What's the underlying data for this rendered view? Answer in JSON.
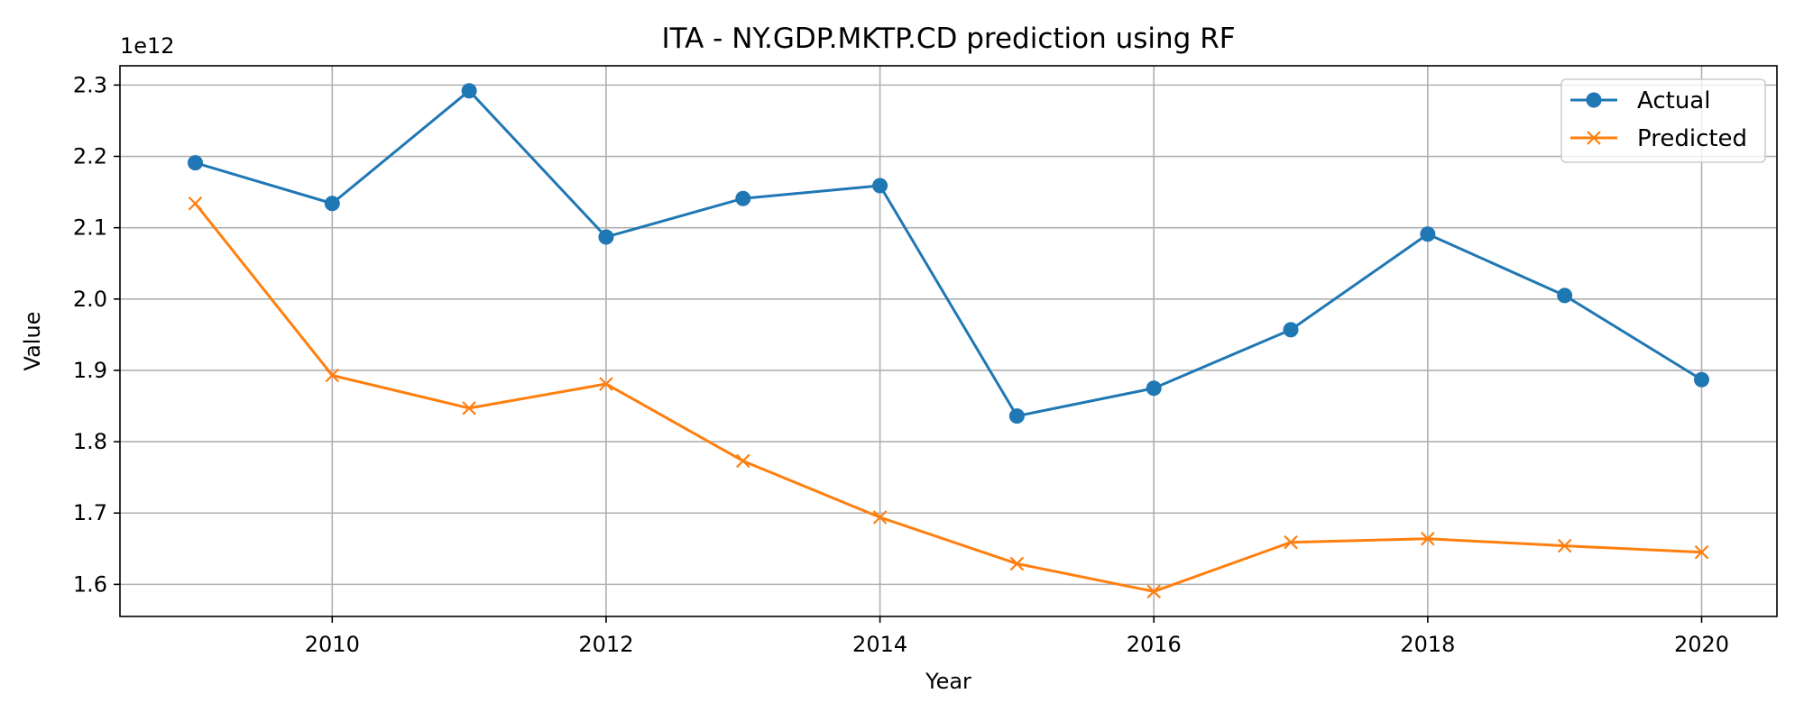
{
  "chart_data": {
    "type": "line",
    "title": "ITA - NY.GDP.MKTP.CD prediction using RF",
    "xlabel": "Year",
    "ylabel": "Value",
    "y_offset_text": "1e12",
    "x": [
      2009,
      2010,
      2011,
      2012,
      2013,
      2014,
      2015,
      2016,
      2017,
      2018,
      2019,
      2020
    ],
    "x_ticks": [
      2010,
      2012,
      2014,
      2016,
      2018,
      2020
    ],
    "y_ticks": [
      1.6,
      1.7,
      1.8,
      1.9,
      2.0,
      2.1,
      2.2,
      2.3
    ],
    "xlim": [
      2008.45,
      2020.55
    ],
    "ylim": [
      1.555,
      2.327
    ],
    "grid": true,
    "legend_position": "upper right",
    "series": [
      {
        "name": "Actual",
        "color": "#1f77b4",
        "marker": "circle",
        "values": [
          2.191,
          2.134,
          2.292,
          2.087,
          2.141,
          2.159,
          1.836,
          1.875,
          1.957,
          2.091,
          2.005,
          1.887
        ]
      },
      {
        "name": "Predicted",
        "color": "#ff7f0e",
        "marker": "x",
        "values": [
          2.134,
          1.893,
          1.847,
          1.881,
          1.773,
          1.694,
          1.629,
          1.59,
          1.659,
          1.664,
          1.654,
          1.645
        ]
      }
    ]
  }
}
